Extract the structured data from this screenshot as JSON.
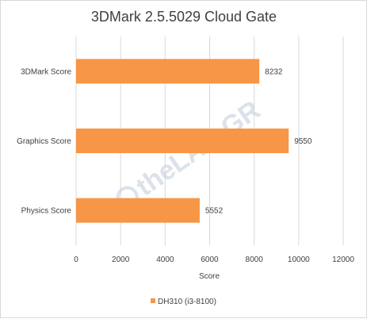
{
  "chart_data": {
    "type": "bar",
    "orientation": "horizontal",
    "title": "3DMark 2.5.5029 Cloud Gate",
    "categories": [
      "3DMark Score",
      "Graphics Score",
      "Physics Score"
    ],
    "series": [
      {
        "name": "DH310 (i3-8100)",
        "values": [
          8232,
          9550,
          5552
        ],
        "color": "#f79646"
      }
    ],
    "xlabel": "Score",
    "ylabel": "",
    "xlim": [
      0,
      12000
    ],
    "xticks": [
      "0",
      "2000",
      "4000",
      "6000",
      "8000",
      "10000",
      "12000"
    ],
    "grid": "vertical",
    "grid_color": "#d9d9d9",
    "legend_position": "bottom",
    "data_labels": [
      "8232",
      "9550",
      "5552"
    ],
    "watermark": "theLAB.GR"
  }
}
